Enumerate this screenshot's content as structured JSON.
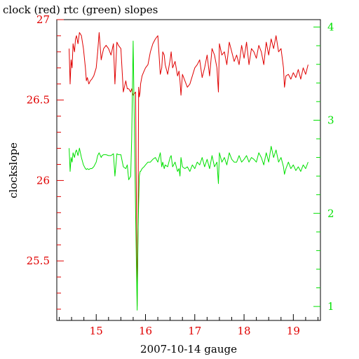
{
  "chart_data": {
    "type": "line",
    "title": "clock (red) rtc (green) slopes",
    "xlabel": "2007-10-14 gauge",
    "ylabel": "clockslope",
    "xlim": [
      14.2,
      19.55
    ],
    "ylim": [
      25.13,
      27.0
    ],
    "y2lim": [
      0.85,
      4.08
    ],
    "x_ticks": [
      15,
      16,
      17,
      18,
      19
    ],
    "y_ticks": [
      25.5,
      26,
      26.5,
      27
    ],
    "y2_ticks": [
      1,
      2,
      3,
      4
    ],
    "grid": false,
    "legend": "none",
    "colors": {
      "clock": "#e00000",
      "rtc": "#00e000",
      "axes": "#000000"
    },
    "series": [
      {
        "axis": "left",
        "x": [
          14.45,
          14.47,
          14.49,
          14.51,
          14.53,
          14.56,
          14.58,
          14.6,
          14.63,
          14.66,
          14.7,
          14.74,
          14.78,
          14.8,
          14.82,
          14.85,
          14.88,
          14.91,
          14.95,
          15.0,
          15.03,
          15.06,
          15.1,
          15.12,
          15.15,
          15.2,
          15.25,
          15.3,
          15.35,
          15.38,
          15.42,
          15.45,
          15.5,
          15.55,
          15.6,
          15.63,
          15.66,
          15.7,
          15.72,
          15.75,
          15.8,
          15.83,
          15.85,
          15.86,
          15.875,
          15.89,
          15.9,
          15.93,
          15.97,
          16.0,
          16.05,
          16.1,
          16.15,
          16.2,
          16.25,
          16.3,
          16.33,
          16.35,
          16.38,
          16.4,
          16.45,
          16.5,
          16.52,
          16.55,
          16.6,
          16.65,
          16.68,
          16.7,
          16.72,
          16.75,
          16.8,
          16.85,
          16.9,
          16.95,
          17.0,
          17.05,
          17.1,
          17.15,
          17.2,
          17.25,
          17.3,
          17.35,
          17.4,
          17.45,
          17.48,
          17.5,
          17.55,
          17.6,
          17.65,
          17.7,
          17.75,
          17.8,
          17.85,
          17.9,
          17.95,
          18.0,
          18.05,
          18.1,
          18.15,
          18.2,
          18.25,
          18.3,
          18.35,
          18.4,
          18.45,
          18.5,
          18.55,
          18.6,
          18.65,
          18.7,
          18.75,
          18.8,
          18.82,
          18.85,
          18.9,
          18.95,
          19.0,
          19.05,
          19.1,
          19.15,
          19.2,
          19.25,
          19.3
        ],
        "values": [
          26.82,
          26.6,
          26.75,
          26.7,
          26.85,
          26.8,
          26.88,
          26.9,
          26.85,
          26.92,
          26.9,
          26.82,
          26.7,
          26.62,
          26.64,
          26.6,
          26.62,
          26.63,
          26.65,
          26.7,
          26.8,
          26.92,
          26.75,
          26.78,
          26.82,
          26.84,
          26.82,
          26.78,
          26.85,
          26.6,
          26.86,
          26.84,
          26.82,
          26.55,
          26.62,
          26.57,
          26.57,
          26.55,
          26.57,
          26.53,
          26.55,
          25.22,
          25.8,
          26.58,
          26.52,
          26.55,
          26.6,
          26.65,
          26.68,
          26.7,
          26.72,
          26.8,
          26.85,
          26.88,
          26.9,
          26.66,
          26.7,
          26.8,
          26.78,
          26.72,
          26.66,
          26.75,
          26.8,
          26.7,
          26.74,
          26.65,
          26.68,
          26.62,
          26.53,
          26.66,
          26.62,
          26.58,
          26.6,
          26.65,
          26.7,
          26.72,
          26.75,
          26.64,
          26.7,
          26.78,
          26.65,
          26.82,
          26.78,
          26.7,
          26.55,
          26.85,
          26.78,
          26.8,
          26.72,
          26.86,
          26.8,
          26.74,
          26.78,
          26.72,
          26.84,
          26.76,
          26.86,
          26.72,
          26.82,
          26.8,
          26.76,
          26.84,
          26.8,
          26.72,
          26.86,
          26.78,
          26.88,
          26.82,
          26.9,
          26.8,
          26.82,
          26.7,
          26.58,
          26.65,
          26.66,
          26.63,
          26.67,
          26.64,
          26.69,
          26.63,
          26.7,
          26.66,
          26.72
        ],
        "labels": [
          "clock (red)"
        ]
      },
      {
        "axis": "right",
        "x": [
          14.45,
          14.47,
          14.49,
          14.51,
          14.53,
          14.56,
          14.58,
          14.6,
          14.63,
          14.66,
          14.7,
          14.74,
          14.78,
          14.8,
          14.82,
          14.85,
          14.88,
          14.91,
          14.95,
          15.0,
          15.03,
          15.06,
          15.1,
          15.12,
          15.15,
          15.2,
          15.25,
          15.3,
          15.35,
          15.38,
          15.42,
          15.45,
          15.5,
          15.55,
          15.6,
          15.63,
          15.66,
          15.7,
          15.72,
          15.75,
          15.8,
          15.83,
          15.85,
          15.86,
          15.875,
          15.89,
          15.9,
          15.93,
          15.97,
          16.0,
          16.05,
          16.1,
          16.15,
          16.2,
          16.25,
          16.3,
          16.33,
          16.35,
          16.38,
          16.4,
          16.45,
          16.5,
          16.52,
          16.55,
          16.6,
          16.65,
          16.68,
          16.7,
          16.72,
          16.75,
          16.8,
          16.85,
          16.9,
          16.95,
          17.0,
          17.05,
          17.1,
          17.15,
          17.2,
          17.25,
          17.3,
          17.35,
          17.4,
          17.45,
          17.48,
          17.5,
          17.55,
          17.6,
          17.65,
          17.7,
          17.75,
          17.8,
          17.85,
          17.9,
          17.95,
          18.0,
          18.05,
          18.1,
          18.15,
          18.2,
          18.25,
          18.3,
          18.35,
          18.4,
          18.45,
          18.5,
          18.55,
          18.6,
          18.65,
          18.7,
          18.75,
          18.8,
          18.82,
          18.85,
          18.9,
          18.95,
          19.0,
          19.05,
          19.1,
          19.15,
          19.2,
          19.25,
          19.3
        ],
        "values": [
          2.7,
          2.45,
          2.6,
          2.55,
          2.65,
          2.6,
          2.66,
          2.68,
          2.62,
          2.7,
          2.6,
          2.52,
          2.48,
          2.47,
          2.48,
          2.47,
          2.48,
          2.48,
          2.5,
          2.55,
          2.62,
          2.65,
          2.6,
          2.62,
          2.63,
          2.63,
          2.62,
          2.62,
          2.64,
          2.4,
          2.64,
          2.63,
          2.63,
          2.5,
          2.48,
          2.52,
          2.36,
          2.4,
          2.8,
          3.85,
          2.0,
          0.96,
          1.85,
          2.1,
          2.4,
          2.45,
          2.45,
          2.48,
          2.5,
          2.52,
          2.55,
          2.55,
          2.58,
          2.6,
          2.55,
          2.65,
          2.5,
          2.55,
          2.48,
          2.52,
          2.5,
          2.6,
          2.62,
          2.5,
          2.55,
          2.45,
          2.48,
          2.4,
          2.6,
          2.5,
          2.48,
          2.5,
          2.45,
          2.52,
          2.48,
          2.55,
          2.52,
          2.6,
          2.5,
          2.58,
          2.48,
          2.62,
          2.5,
          2.55,
          2.32,
          2.65,
          2.55,
          2.6,
          2.52,
          2.65,
          2.58,
          2.55,
          2.55,
          2.62,
          2.55,
          2.58,
          2.62,
          2.55,
          2.6,
          2.58,
          2.55,
          2.65,
          2.6,
          2.52,
          2.65,
          2.55,
          2.72,
          2.6,
          2.68,
          2.55,
          2.6,
          2.5,
          2.42,
          2.48,
          2.55,
          2.48,
          2.52,
          2.46,
          2.5,
          2.45,
          2.52,
          2.48,
          2.55
        ],
        "labels": [
          "rtc (green)"
        ]
      }
    ]
  }
}
